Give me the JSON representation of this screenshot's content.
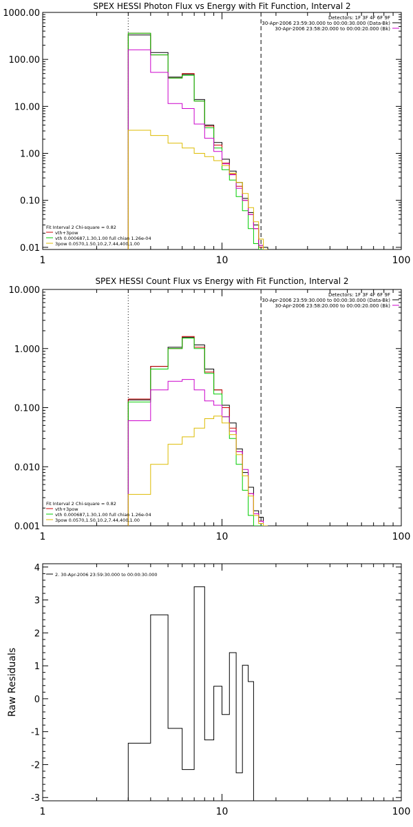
{
  "chart_data": [
    {
      "type": "line",
      "title": "SPEX HESSI Photon Flux vs Energy with Fit Function, Interval 2",
      "xscale": "log",
      "yscale": "log",
      "xlim": [
        1,
        100
      ],
      "ylim": [
        0.009,
        1000
      ],
      "xticks": [
        {
          "v": 1,
          "l": "1"
        },
        {
          "v": 10,
          "l": "10"
        },
        {
          "v": 100,
          "l": "100"
        }
      ],
      "yticks": [
        {
          "v": 0.01,
          "l": "0.01"
        },
        {
          "v": 0.1,
          "l": "0.10"
        },
        {
          "v": 1,
          "l": "1.00"
        },
        {
          "v": 10,
          "l": "10.00"
        },
        {
          "v": 100,
          "l": "100.00"
        },
        {
          "v": 1000,
          "l": "1000.00"
        }
      ],
      "ylabel": "",
      "vlines": [
        {
          "x": 3.0,
          "style": "dotted"
        },
        {
          "x": 16.5,
          "style": "dashed"
        }
      ],
      "info_lines": [
        "Detectors: 1F 3F 4F 6F 9F",
        "30-Apr-2006 23:59:30.000 to 00:00:30.000 (Data-Bk)",
        "30-Apr-2006 23:58:20.000 to 00:00:20.000 (Bk)"
      ],
      "info_colors": [
        "",
        "#000000",
        "#cc00cc"
      ],
      "legend_lines": [
        "Fit Interval 2   Chi-square = 0.82",
        "vth+3pow",
        "vth 0.000687,1.30,1.00   full chian 1.26e-04",
        "3pow 0.0570,1.50,10.2,7.44,400,1.00"
      ],
      "legend_colors": [
        "",
        "#cc0000",
        "#00cc00",
        "#ddbb00"
      ],
      "edges": [
        3.0,
        4.0,
        5.0,
        6.0,
        7.0,
        8.0,
        9.0,
        10.0,
        11.0,
        12.0,
        13.0,
        14.0,
        15.0,
        16.0,
        17.0,
        18.0
      ],
      "series": [
        {
          "color": "#000000",
          "values": [
            330,
            140,
            42,
            48,
            14,
            4,
            1.7,
            0.75,
            0.42,
            0.24,
            0.11,
            0.055,
            0.03,
            0.011,
            0.01
          ]
        },
        {
          "color": "#cc0000",
          "values": [
            360,
            125,
            40,
            50,
            13,
            3.8,
            1.5,
            0.62,
            0.36,
            0.2,
            0.1,
            0.05,
            0.025,
            0.01,
            0.009
          ]
        },
        {
          "color": "#00cc00",
          "values": [
            360,
            125,
            40,
            46,
            13,
            3.5,
            1.3,
            0.45,
            0.27,
            0.12,
            0.06,
            0.025,
            0.012,
            0.009,
            0.009
          ]
        },
        {
          "color": "#cc00cc",
          "values": [
            160,
            53,
            11.5,
            9.0,
            4.2,
            2.1,
            1.1,
            0.6,
            0.35,
            0.18,
            0.1,
            0.05,
            0.025,
            0.011,
            0.009
          ]
        },
        {
          "color": "#ddbb00",
          "values": [
            3.1,
            2.4,
            1.65,
            1.3,
            1.0,
            0.85,
            0.7,
            0.55,
            0.38,
            0.24,
            0.14,
            0.07,
            0.035,
            0.015,
            0.009
          ]
        }
      ]
    },
    {
      "type": "line",
      "title": "SPEX HESSI Count Flux vs Energy with Fit Function, Interval 2",
      "xscale": "log",
      "yscale": "log",
      "xlim": [
        1,
        100
      ],
      "ylim": [
        0.001,
        10
      ],
      "xticks": [
        {
          "v": 1,
          "l": "1"
        },
        {
          "v": 10,
          "l": "10"
        },
        {
          "v": 100,
          "l": "100"
        }
      ],
      "yticks": [
        {
          "v": 0.001,
          "l": "0.001"
        },
        {
          "v": 0.01,
          "l": "0.010"
        },
        {
          "v": 0.1,
          "l": "0.100"
        },
        {
          "v": 1,
          "l": "1.000"
        },
        {
          "v": 10,
          "l": "10.000"
        }
      ],
      "ylabel": "",
      "vlines": [
        {
          "x": 3.0,
          "style": "dotted"
        },
        {
          "x": 16.5,
          "style": "dashed"
        }
      ],
      "info_lines": [
        "Detectors: 1F 3F 4F 6F 9F",
        "30-Apr-2006 23:59:30.000 to 00:00:30.000 (Data-Bk)",
        "30-Apr-2006 23:58:20.000 to 00:00:20.000 (Bk)"
      ],
      "info_colors": [
        "",
        "#000000",
        "#cc00cc"
      ],
      "legend_lines": [
        "Fit Interval 2   Chi-square = 0.82",
        "vth+3pow",
        "vth 0.000687,1.30,1.00   full chian 1.26e-04",
        "3pow 0.0570,1.50,10.2,7.44,400,1.00"
      ],
      "legend_colors": [
        "",
        "#cc0000",
        "#00cc00",
        "#ddbb00"
      ],
      "edges": [
        3.0,
        4.0,
        5.0,
        6.0,
        7.0,
        8.0,
        9.0,
        10.0,
        11.0,
        12.0,
        13.0,
        14.0,
        15.0,
        16.0,
        17.0,
        18.0
      ],
      "series": [
        {
          "color": "#000000",
          "values": [
            0.135,
            0.5,
            1.05,
            1.55,
            1.15,
            0.45,
            0.2,
            0.11,
            0.055,
            0.02,
            0.008,
            0.0045,
            0.0018,
            0.0014,
            0.001
          ]
        },
        {
          "color": "#cc0000",
          "values": [
            0.14,
            0.5,
            1.0,
            1.6,
            1.05,
            0.4,
            0.2,
            0.1,
            0.045,
            0.018,
            0.007,
            0.0035,
            0.0016,
            0.0012,
            0.001
          ]
        },
        {
          "color": "#00cc00",
          "values": [
            0.125,
            0.45,
            1.0,
            1.5,
            1.0,
            0.38,
            0.17,
            0.07,
            0.03,
            0.011,
            0.004,
            0.0015,
            0.001,
            0.001,
            0.001
          ]
        },
        {
          "color": "#cc00cc",
          "values": [
            0.06,
            0.2,
            0.28,
            0.3,
            0.2,
            0.13,
            0.11,
            0.07,
            0.04,
            0.018,
            0.009,
            0.0035,
            0.0016,
            0.0012,
            0.001
          ]
        },
        {
          "color": "#ddbb00",
          "values": [
            0.0034,
            0.011,
            0.024,
            0.032,
            0.045,
            0.065,
            0.072,
            0.055,
            0.035,
            0.016,
            0.007,
            0.0032,
            0.0015,
            0.0011,
            0.001
          ]
        }
      ]
    },
    {
      "type": "line",
      "title": "",
      "xscale": "log",
      "yscale": "linear",
      "xlim": [
        1,
        100
      ],
      "ylim": [
        -3.1,
        4.1
      ],
      "xticks": [
        {
          "v": 1,
          "l": "1"
        },
        {
          "v": 10,
          "l": "10"
        },
        {
          "v": 100,
          "l": "100"
        }
      ],
      "yticks": [
        {
          "v": -3,
          "l": "-3"
        },
        {
          "v": -2,
          "l": "-2"
        },
        {
          "v": -1,
          "l": "-1"
        },
        {
          "v": 0,
          "l": "0"
        },
        {
          "v": 1,
          "l": "1"
        },
        {
          "v": 2,
          "l": "2"
        },
        {
          "v": 3,
          "l": "3"
        },
        {
          "v": 4,
          "l": "4"
        }
      ],
      "ylabel": "Raw Residuals",
      "vlines": [],
      "info_lines": [],
      "info_colors": [],
      "legend_lines": [
        "2. 30-Apr-2006 23:59:30.000 to 00:00:30.000"
      ],
      "legend_colors": [
        "#000000"
      ],
      "edges": [
        3.0,
        4.0,
        5.0,
        6.0,
        7.0,
        8.0,
        9.0,
        10.0,
        11.0,
        12.0,
        13.0,
        14.0,
        15.0,
        16.0,
        17.0
      ],
      "series": [
        {
          "color": "#000000",
          "values": [
            -1.35,
            2.55,
            -0.9,
            -2.15,
            3.4,
            -1.25,
            0.38,
            -0.48,
            1.4,
            -2.25,
            1.02,
            0.52,
            -3.1,
            -3.1
          ]
        }
      ]
    }
  ]
}
